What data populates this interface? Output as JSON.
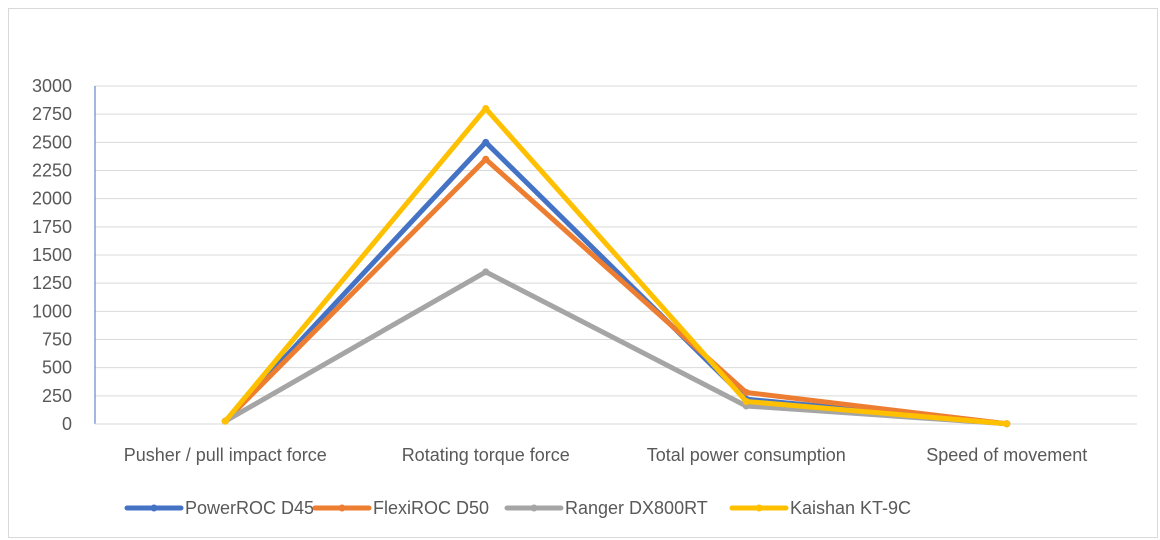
{
  "chart_data": {
    "type": "line",
    "title": "",
    "xlabel": "",
    "ylabel": "",
    "categories": [
      "Pusher / pull impact force",
      "Rotating torque force",
      "Total power consumption",
      "Speed of movement"
    ],
    "ylim": [
      0,
      3000
    ],
    "yticks": [
      0,
      250,
      500,
      750,
      1000,
      1250,
      1500,
      1750,
      2000,
      2250,
      2500,
      2750,
      3000
    ],
    "grid": true,
    "legend_position": "bottom",
    "series": [
      {
        "name": "PowerROC D45",
        "color": "#4472C4",
        "values": [
          25,
          2500,
          220,
          2
        ]
      },
      {
        "name": "FlexiROC D50",
        "color": "#ED7D31",
        "values": [
          25,
          2350,
          280,
          2
        ]
      },
      {
        "name": "Ranger DX800RT",
        "color": "#A5A5A5",
        "values": [
          25,
          1350,
          160,
          2
        ]
      },
      {
        "name": "Kaishan KT-9C",
        "color": "#FFC000",
        "values": [
          25,
          2800,
          200,
          2
        ]
      }
    ]
  }
}
